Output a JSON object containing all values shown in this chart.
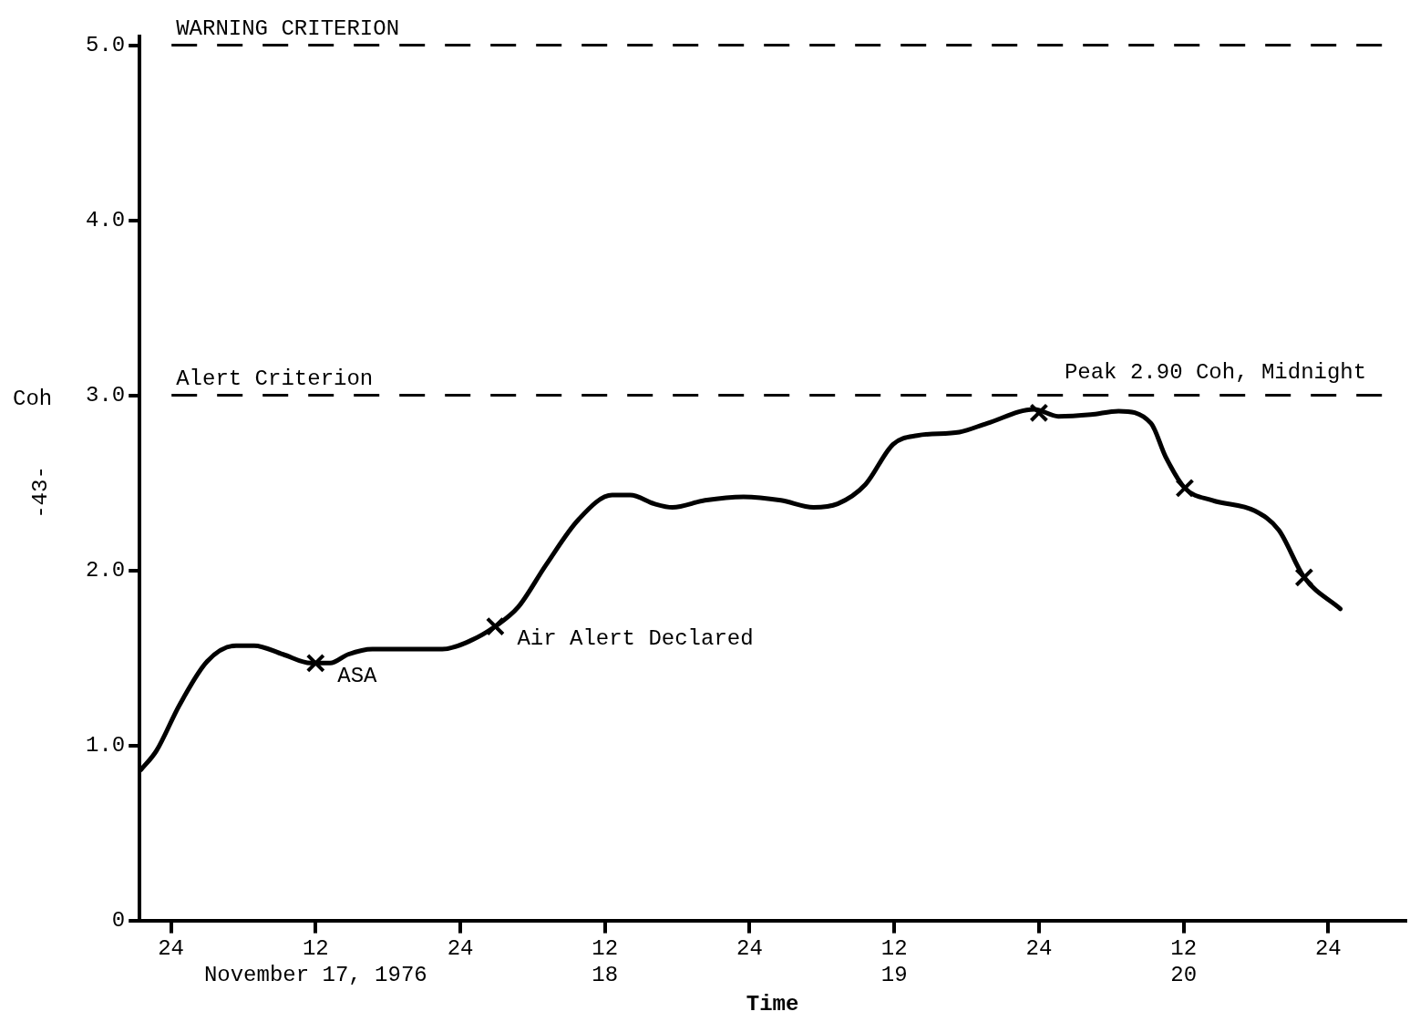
{
  "chart_data": {
    "type": "line",
    "xlabel": "Time",
    "ylabel": "Coh",
    "xlim": [
      "1976-11-16T21:24",
      "1976-11-21T06:24"
    ],
    "ylim": [
      0,
      5.05
    ],
    "xticks": [
      {
        "value": "1976-11-17T00:00",
        "label": "24"
      },
      {
        "value": "1976-11-17T12:00",
        "label": "12\nNovember 17, 1976"
      },
      {
        "value": "1976-11-18T00:00",
        "label": "24"
      },
      {
        "value": "1976-11-18T12:00",
        "label": "12\n18"
      },
      {
        "value": "1976-11-19T00:00",
        "label": "24"
      },
      {
        "value": "1976-11-19T12:00",
        "label": "12\n19"
      },
      {
        "value": "1976-11-20T00:00",
        "label": "24"
      },
      {
        "value": "1976-11-20T12:00",
        "label": "12\n20"
      },
      {
        "value": "1976-11-21T00:00",
        "label": "24"
      }
    ],
    "yticks": [
      0,
      {
        "value": 1,
        "label": "1.0"
      },
      {
        "value": 2,
        "label": "2.0"
      },
      {
        "value": 3,
        "label": "3.0"
      },
      {
        "value": 4,
        "label": "4.0"
      },
      {
        "value": 5,
        "label": "5.0"
      }
    ],
    "grid": false,
    "legend": false,
    "series": [
      {
        "color": "#000000",
        "marker": "none",
        "line_style": "solid",
        "x": [
          "1976-11-16T21:30",
          "1976-11-16T22:48",
          "1976-11-17T00:42",
          "1976-11-17T03:00",
          "1976-11-17T05:24",
          "1976-11-17T06:54",
          "1976-11-17T09:18",
          "1976-11-17T11:36",
          "1976-11-17T13:12",
          "1976-11-17T14:42",
          "1976-11-17T16:42",
          "1976-11-17T19:24",
          "1976-11-17T22:30",
          "1976-11-18T00:54",
          "1976-11-18T02:54",
          "1976-11-18T04:48",
          "1976-11-18T07:06",
          "1976-11-18T09:48",
          "1976-11-18T12:36",
          "1976-11-18T14:06",
          "1976-11-18T16:06",
          "1976-11-18T17:36",
          "1976-11-18T20:18",
          "1976-11-18T23:30",
          "1976-11-19T02:36",
          "1976-11-19T05:18",
          "1976-11-19T07:18",
          "1976-11-19T09:36",
          "1976-11-19T11:54",
          "1976-11-19T13:54",
          "1976-11-19T17:24",
          "1976-11-19T19:42",
          "1976-11-19T23:36",
          "1976-11-20T01:36",
          "1976-11-20T04:18",
          "1976-11-20T06:36",
          "1976-11-20T09:18",
          "1976-11-20T10:30",
          "1976-11-20T12:06",
          "1976-11-20T14:24",
          "1976-11-20T17:54",
          "1976-11-20T19:54",
          "1976-11-20T22:00",
          "1976-11-21T01:00"
        ],
        "values": [
          0.86,
          0.97,
          1.23,
          1.48,
          1.57,
          1.57,
          1.52,
          1.47,
          1.47,
          1.52,
          1.55,
          1.55,
          1.55,
          1.6,
          1.68,
          1.79,
          2.03,
          2.29,
          2.43,
          2.43,
          2.38,
          2.36,
          2.4,
          2.42,
          2.4,
          2.36,
          2.38,
          2.49,
          2.72,
          2.77,
          2.79,
          2.84,
          2.92,
          2.88,
          2.89,
          2.91,
          2.84,
          2.65,
          2.47,
          2.4,
          2.34,
          2.23,
          1.96,
          1.78
        ]
      },
      {
        "type": "scatter",
        "color": "#000000",
        "marker": "cross",
        "x": [
          "1976-11-17T12:00",
          "1976-11-18T02:54",
          "1976-11-20T00:00",
          "1976-11-20T12:06",
          "1976-11-20T22:00"
        ],
        "values": [
          1.47,
          1.68,
          2.9,
          2.47,
          1.96
        ]
      }
    ],
    "ref_lines": [
      {
        "axis": "y",
        "value": 5,
        "label": "WARNING CRITERION",
        "line_style": "dashed",
        "color": "#000000"
      },
      {
        "axis": "y",
        "value": 3,
        "label": "Alert Criterion",
        "line_style": "dashed",
        "color": "#000000"
      }
    ],
    "annotations": [
      {
        "text": "ASA",
        "x": "1976-11-17T12:00",
        "y": 1.47
      },
      {
        "text": "Air Alert Declared",
        "x": "1976-11-18T02:54",
        "y": 1.68
      },
      {
        "text": "Peak 2.90 Coh, Midnight",
        "x": "1976-11-20T00:00",
        "y": 2.9
      },
      "-43-"
    ]
  }
}
